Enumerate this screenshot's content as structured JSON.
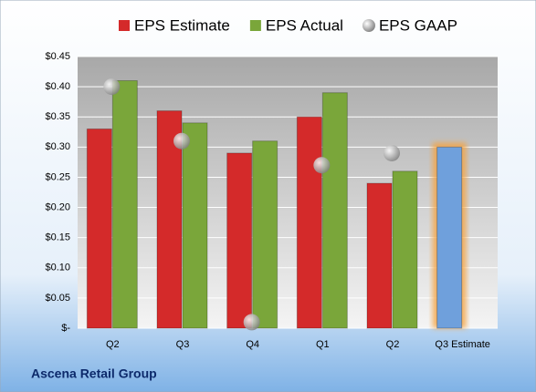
{
  "chart_data": {
    "type": "bar",
    "title": "Ascena Retail Group",
    "categories": [
      "Q2",
      "Q3",
      "Q4",
      "Q1",
      "Q2",
      "Q3 Estimate"
    ],
    "series": [
      {
        "name": "EPS Estimate",
        "color": "#d42a2a",
        "colors": [
          "#d42a2a",
          "#d42a2a",
          "#d42a2a",
          "#d42a2a",
          "#d42a2a",
          "#6fa0dc"
        ],
        "values": [
          0.33,
          0.36,
          0.29,
          0.35,
          0.24,
          0.3
        ]
      },
      {
        "name": "EPS Actual",
        "color": "#7aa63a",
        "values": [
          0.41,
          0.34,
          0.31,
          0.39,
          0.26,
          null
        ]
      },
      {
        "name": "EPS GAAP",
        "color": "#a0a0a0",
        "type": "scatter",
        "values": [
          0.4,
          0.31,
          0.01,
          0.27,
          0.29,
          null
        ]
      }
    ],
    "ylim": [
      0,
      0.45
    ],
    "yticks": [
      {
        "value": 0,
        "label": "$-"
      },
      {
        "value": 0.05,
        "label": "$0.05"
      },
      {
        "value": 0.1,
        "label": "$0.10"
      },
      {
        "value": 0.15,
        "label": "$0.15"
      },
      {
        "value": 0.2,
        "label": "$0.20"
      },
      {
        "value": 0.25,
        "label": "$0.25"
      },
      {
        "value": 0.3,
        "label": "$0.30"
      },
      {
        "value": 0.35,
        "label": "$0.35"
      },
      {
        "value": 0.4,
        "label": "$0.40"
      },
      {
        "value": 0.45,
        "label": "$0.45"
      }
    ],
    "grid": true,
    "legend": "top"
  }
}
